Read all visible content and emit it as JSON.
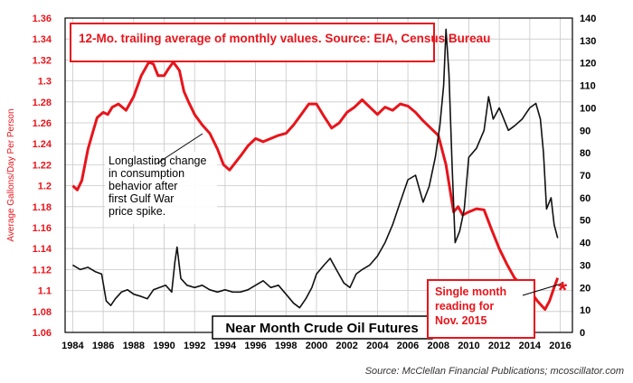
{
  "chart_data": {
    "type": "line",
    "title": "",
    "note": "12-Mo. trailing average of monthly values. Source: EIA, Census Bureau",
    "ylabel_left": "Average Gallons/Day Per Person",
    "ylabel_right": "",
    "xlim": [
      1983.5,
      2016.8
    ],
    "ylim_left": [
      1.06,
      1.36
    ],
    "ylim_right": [
      0,
      140
    ],
    "x_ticks": [
      "1984",
      "1986",
      "1988",
      "1990",
      "1992",
      "1994",
      "1996",
      "1998",
      "2000",
      "2002",
      "2004",
      "2006",
      "2008",
      "2010",
      "2012",
      "2014",
      "2016"
    ],
    "y_left_ticks": [
      "1.36",
      "1.34",
      "1.32",
      "1.3",
      "1.28",
      "1.26",
      "1.24",
      "1.22",
      "1.2",
      "1.18",
      "1.16",
      "1.14",
      "1.12",
      "1.1",
      "1.08",
      "1.06"
    ],
    "y_right_ticks": [
      "140",
      "130",
      "120",
      "110",
      "100",
      "90",
      "80",
      "70",
      "60",
      "50",
      "40",
      "30",
      "20",
      "10",
      "0"
    ],
    "grid": true,
    "series": [
      {
        "name": "",
        "axis": "left",
        "color": "#e8141b",
        "x": [
          1984.0,
          1984.3,
          1984.6,
          1985.0,
          1985.3,
          1985.6,
          1986.0,
          1986.3,
          1986.6,
          1987.0,
          1987.5,
          1988.0,
          1988.5,
          1989.0,
          1989.3,
          1989.6,
          1990.0,
          1990.3,
          1990.6,
          1991.0,
          1991.3,
          1991.6,
          1992.0,
          1992.5,
          1993.0,
          1993.5,
          1993.9,
          1994.3,
          1995.0,
          1995.5,
          1996.0,
          1996.5,
          1997.0,
          1997.5,
          1998.0,
          1998.5,
          1999.0,
          1999.5,
          2000.0,
          2000.5,
          2001.0,
          2001.5,
          2002.0,
          2002.5,
          2003.0,
          2003.5,
          2004.0,
          2004.5,
          2005.0,
          2005.5,
          2006.0,
          2006.5,
          2007.0,
          2007.5,
          2008.0,
          2008.5,
          2009.0,
          2009.3,
          2009.6,
          2010.0,
          2010.5,
          2011.0,
          2011.5,
          2012.0,
          2012.5,
          2013.0,
          2013.5,
          2014.0,
          2014.5,
          2015.0,
          2015.3,
          2015.6,
          2015.83
        ],
        "values": [
          1.2,
          1.196,
          1.205,
          1.235,
          1.25,
          1.265,
          1.27,
          1.268,
          1.275,
          1.278,
          1.272,
          1.285,
          1.305,
          1.318,
          1.316,
          1.305,
          1.305,
          1.312,
          1.318,
          1.31,
          1.29,
          1.28,
          1.268,
          1.258,
          1.25,
          1.235,
          1.22,
          1.215,
          1.228,
          1.238,
          1.245,
          1.242,
          1.245,
          1.248,
          1.25,
          1.258,
          1.268,
          1.278,
          1.278,
          1.266,
          1.255,
          1.26,
          1.27,
          1.275,
          1.282,
          1.275,
          1.268,
          1.275,
          1.272,
          1.278,
          1.276,
          1.27,
          1.262,
          1.255,
          1.248,
          1.22,
          1.175,
          1.18,
          1.172,
          1.175,
          1.178,
          1.177,
          1.158,
          1.14,
          1.125,
          1.112,
          1.105,
          1.1,
          1.09,
          1.082,
          1.09,
          1.103,
          1.112
        ]
      },
      {
        "name": "Near Month Crude Oil Futures",
        "axis": "right",
        "color": "#111111",
        "x": [
          1984.0,
          1984.5,
          1985.0,
          1985.5,
          1985.9,
          1986.2,
          1986.5,
          1986.8,
          1987.2,
          1987.6,
          1988.0,
          1988.5,
          1988.9,
          1989.3,
          1989.7,
          1990.1,
          1990.5,
          1990.7,
          1990.85,
          1991.1,
          1991.5,
          1992.0,
          1992.5,
          1993.0,
          1993.5,
          1994.0,
          1994.5,
          1995.0,
          1995.5,
          1996.0,
          1996.5,
          1997.0,
          1997.5,
          1998.0,
          1998.5,
          1998.9,
          1999.3,
          1999.7,
          2000.0,
          2000.5,
          2000.9,
          2001.3,
          2001.8,
          2002.2,
          2002.6,
          2003.0,
          2003.5,
          2004.0,
          2004.5,
          2005.0,
          2005.5,
          2006.0,
          2006.5,
          2007.0,
          2007.4,
          2007.8,
          2008.1,
          2008.35,
          2008.5,
          2008.7,
          2008.9,
          2009.1,
          2009.4,
          2009.7,
          2010.0,
          2010.5,
          2011.0,
          2011.3,
          2011.6,
          2012.0,
          2012.3,
          2012.6,
          2013.0,
          2013.5,
          2014.0,
          2014.4,
          2014.7,
          2014.9,
          2015.1,
          2015.4,
          2015.6,
          2015.83
        ],
        "values": [
          30,
          28,
          29,
          27,
          26,
          14,
          12,
          15,
          18,
          19,
          17,
          16,
          15,
          19,
          20,
          21,
          18,
          31,
          38,
          24,
          21,
          20,
          21,
          19,
          18,
          19,
          18,
          18,
          19,
          21,
          23,
          20,
          21,
          17,
          13,
          11,
          15,
          20,
          26,
          30,
          33,
          28,
          22,
          20,
          26,
          28,
          30,
          34,
          40,
          48,
          58,
          68,
          70,
          58,
          65,
          78,
          92,
          110,
          135,
          115,
          75,
          40,
          45,
          55,
          78,
          82,
          90,
          105,
          95,
          100,
          95,
          90,
          92,
          95,
          100,
          102,
          95,
          80,
          55,
          60,
          48,
          42
        ]
      }
    ],
    "annotations": [
      "Longlasting change in consumption behavior after first Gulf War price spike.",
      "Single month reading for Nov. 2015"
    ],
    "legend_box": "Near Month Crude Oil Futures",
    "source": "Source: McClellan Financial Publications; mcoscillator.com"
  }
}
